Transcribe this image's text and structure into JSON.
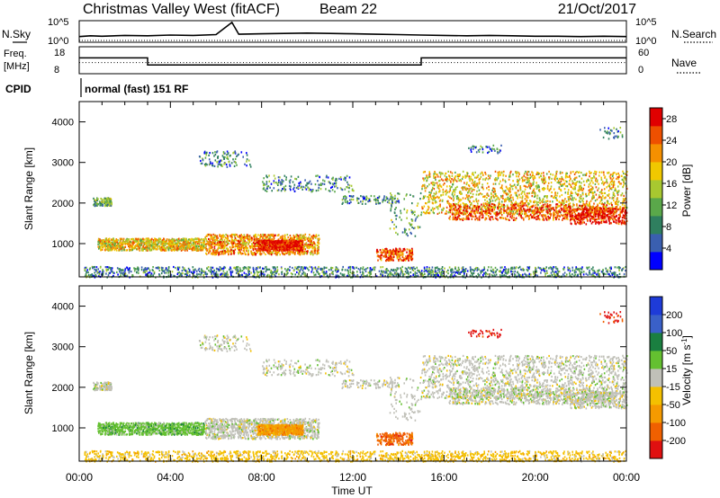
{
  "header": {
    "title": "Christmas Valley West (fitACF)",
    "beam": "Beam 22",
    "date": "21/Oct/2017"
  },
  "strip_panels": {
    "nsky_label": "N.Sky",
    "nsearch_label": "N.Search",
    "noise_ticks": [
      "10^5",
      "10^0"
    ],
    "freq_label": "Freq.",
    "freq_unit": "[MHz]",
    "freq_ticks": [
      "18",
      "8"
    ],
    "nave_label": "Nave",
    "nave_ticks": [
      "60",
      "0"
    ],
    "cpid_label": "CPID",
    "cpid_text": "normal (fast) 151 RF"
  },
  "colors": {
    "power_scale": [
      "#0000ff",
      "#3a5fb0",
      "#2f7f5f",
      "#5aa84a",
      "#a8c830",
      "#f0c800",
      "#f59000",
      "#ee5000",
      "#e00000"
    ],
    "velocity_scale": [
      "#1e3bd8",
      "#3a60c8",
      "#1a7f40",
      "#64c030",
      "#c0c0b8",
      "#f4c000",
      "#f59a00",
      "#f06000",
      "#e01010"
    ]
  },
  "chart_data": [
    {
      "type": "line",
      "panel": "noise",
      "ylabel": "N.Sky",
      "y_ticks": [
        "10^5",
        "10^0"
      ],
      "right_label": "N.Search",
      "right_ticks": [
        "10^5",
        "10^0"
      ],
      "x_range": [
        "00:00",
        "24:00"
      ],
      "series": [
        {
          "values": [
            [
              0,
              1.2
            ],
            [
              0.5,
              1.4
            ],
            [
              1,
              1.3
            ],
            [
              2,
              1.5
            ],
            [
              3,
              1.4
            ],
            [
              4,
              1.6
            ],
            [
              5,
              1.5
            ],
            [
              6,
              1.7
            ],
            [
              6.7,
              4.8
            ],
            [
              7,
              1.8
            ],
            [
              8,
              1.9
            ],
            [
              9,
              2.0
            ],
            [
              10,
              2.1
            ],
            [
              11,
              2.0
            ],
            [
              12,
              1.9
            ],
            [
              13,
              1.8
            ],
            [
              14,
              1.7
            ],
            [
              15,
              1.6
            ],
            [
              16,
              1.5
            ],
            [
              17,
              1.4
            ],
            [
              18,
              1.5
            ],
            [
              19,
              1.4
            ],
            [
              20,
              1.3
            ],
            [
              21,
              1.3
            ],
            [
              22,
              1.2
            ],
            [
              23,
              1.3
            ],
            [
              24,
              1.2
            ]
          ]
        }
      ]
    },
    {
      "type": "line",
      "panel": "frequency",
      "ylabel": "Freq. [MHz]",
      "y_ticks": [
        18,
        8
      ],
      "right_label": "Nave",
      "right_ticks": [
        60,
        0
      ],
      "series": [
        {
          "values": [
            [
              0,
              14
            ],
            [
              3,
              14
            ],
            [
              3,
              11
            ],
            [
              15,
              11
            ],
            [
              15,
              14
            ],
            [
              24,
              14
            ]
          ]
        },
        {
          "values": [
            [
              0,
              12
            ],
            [
              24,
              12
            ]
          ]
        }
      ]
    },
    {
      "type": "heatmap",
      "panel": "power",
      "xlabel": "",
      "ylabel": "Slant Range [km]",
      "x_ticks": [
        "00:00",
        "04:00",
        "08:00",
        "12:00",
        "16:00",
        "20:00",
        "00:00"
      ],
      "y_ticks": [
        1000,
        2000,
        3000,
        4000
      ],
      "ylim": [
        180,
        4500
      ],
      "colorbar_label": "Power [dB]",
      "colorbar_ticks": [
        4,
        8,
        12,
        16,
        20,
        24,
        28
      ],
      "colorbar_range": [
        0,
        30
      ]
    },
    {
      "type": "heatmap",
      "panel": "velocity",
      "xlabel": "Time UT",
      "ylabel": "Slant Range [km]",
      "x_ticks": [
        "00:00",
        "04:00",
        "08:00",
        "12:00",
        "16:00",
        "20:00",
        "00:00"
      ],
      "y_ticks": [
        1000,
        2000,
        3000,
        4000
      ],
      "ylim": [
        180,
        4500
      ],
      "colorbar_label": "Velocity [m s^-1]",
      "colorbar_ticks": [
        200,
        100,
        50,
        15,
        -15,
        -50,
        -100,
        -200
      ]
    }
  ]
}
